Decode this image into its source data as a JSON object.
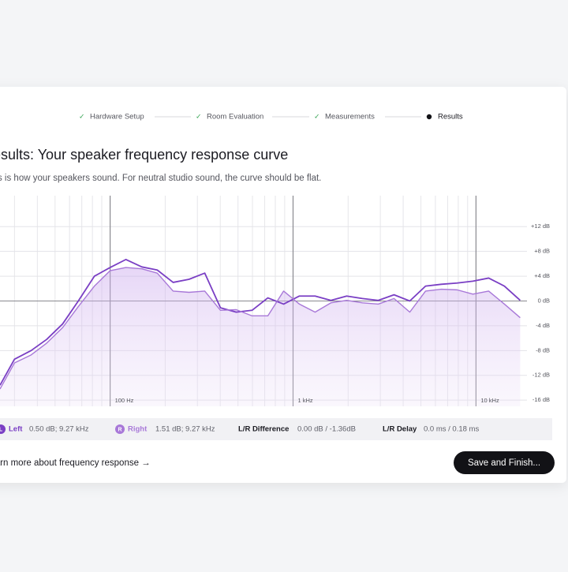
{
  "steps": [
    "Hardware Setup",
    "Room Evaluation",
    "Measurements",
    "Results"
  ],
  "header": {
    "title": "Results: Your speaker frequency response curve",
    "subtitle": "This is how your speakers sound. For neutral studio sound, the curve should be flat."
  },
  "chart_data": {
    "type": "line",
    "log_x": true,
    "grid": true,
    "area_under": "Right",
    "x": [
      25,
      30,
      37,
      45,
      55,
      67,
      82,
      100,
      122,
      149,
      181,
      221,
      270,
      329,
      401,
      489,
      597,
      728,
      888,
      1083,
      1320,
      1610,
      1964,
      2395,
      2922,
      3564,
      4346,
      5300,
      6464,
      7885,
      9616,
      11728,
      14303,
      17444
    ],
    "series": [
      {
        "name": "Left",
        "badge": "L",
        "color": "#7a3fc4",
        "values": [
          -13.6,
          -9.4,
          -8,
          -6.2,
          -3.7,
          0,
          4,
          5.4,
          6.7,
          5.5,
          5,
          3,
          3.5,
          4.5,
          -1.1,
          -1.8,
          -1.5,
          0.5,
          -0.5,
          0.8,
          0.8,
          0.1,
          0.8,
          0.4,
          0.1,
          1,
          0,
          2.4,
          2.7,
          2.9,
          3.2,
          3.7,
          2.4,
          0.1
        ]
      },
      {
        "name": "Right",
        "badge": "R",
        "color": "#a878d8",
        "values": [
          -14.2,
          -10,
          -8.7,
          -6.8,
          -4.3,
          -0.9,
          2.4,
          4.9,
          5.4,
          5.2,
          4.5,
          1.6,
          1.4,
          1.6,
          -1.5,
          -1.4,
          -2.4,
          -2.4,
          1.6,
          -0.5,
          -1.8,
          -0.3,
          0.1,
          -0.3,
          -0.5,
          0.4,
          -1.8,
          1.6,
          1.9,
          1.8,
          1.1,
          1.6,
          -0.5,
          -2.7
        ]
      }
    ],
    "xlim": [
      25,
      19000
    ],
    "xticks": [
      {
        "value": 100,
        "label": "100 Hz"
      },
      {
        "value": 1000,
        "label": "1 kHz"
      },
      {
        "value": 10000,
        "label": "10 kHz"
      }
    ],
    "ylim": [
      -17,
      17
    ],
    "yticks": [
      {
        "value": 12,
        "label": "+12 dB"
      },
      {
        "value": 8,
        "label": "+8 dB"
      },
      {
        "value": 4,
        "label": "+4 dB"
      },
      {
        "value": 0,
        "label": "0 dB"
      },
      {
        "value": -4,
        "label": "-4 dB"
      },
      {
        "value": -8,
        "label": "-8 dB"
      },
      {
        "value": -12,
        "label": "-12 dB"
      },
      {
        "value": -16,
        "label": "-16 dB"
      }
    ]
  },
  "readouts": {
    "left": "0.50 dB; 9.27 kHz",
    "right": "1.51 dB; 9.27 kHz",
    "diff_label": "L/R Difference",
    "diff": "0.00 dB / -1.36dB",
    "delay_label": "L/R Delay",
    "delay": "0.0 ms / 0.18 ms"
  },
  "footer": {
    "link": "Learn more about frequency response →",
    "button": "Save and Finish..."
  }
}
